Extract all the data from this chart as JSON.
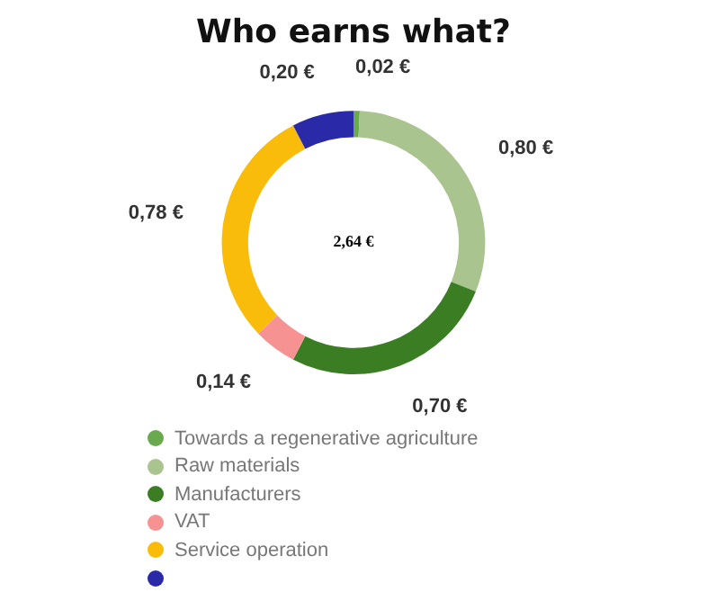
{
  "chart_data": {
    "type": "donut",
    "title": "Who earns what?",
    "categories": [
      "Towards a regenerative agriculture",
      "Raw materials",
      "Manufacturers",
      "VAT",
      "Service operation",
      null
    ],
    "values": [
      0.02,
      0.8,
      0.7,
      0.14,
      0.78,
      0.2
    ],
    "value_labels": [
      "0,02 €",
      "0,80 €",
      "0,70 €",
      "0,14 €",
      "0,78 €",
      "0,20 €"
    ],
    "colors": [
      "#6aaa4f",
      "#a9c48f",
      "#3a7d23",
      "#f79293",
      "#f9bc0a",
      "#2a2aa8"
    ],
    "annotations": [
      "2,64 €"
    ],
    "legend": "bottom left"
  }
}
